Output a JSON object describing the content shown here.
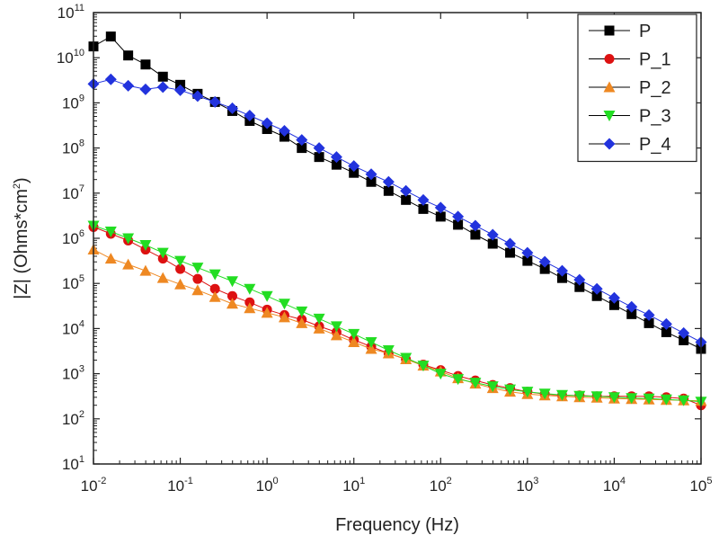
{
  "chart_data": {
    "type": "line",
    "title": "",
    "xlabel": "Frequency (Hz)",
    "ylabel_parts": {
      "main": "|Z| (Ohms*cm",
      "sup": "2",
      "close": ")"
    },
    "x_scale": "log",
    "y_scale": "log",
    "xlim_log10": [
      -2,
      5
    ],
    "ylim_log10": [
      1,
      11
    ],
    "x_ticks": [
      {
        "base": "10",
        "exp": "-2"
      },
      {
        "base": "10",
        "exp": "-1"
      },
      {
        "base": "10",
        "exp": "0"
      },
      {
        "base": "10",
        "exp": "1"
      },
      {
        "base": "10",
        "exp": "2"
      },
      {
        "base": "10",
        "exp": "3"
      },
      {
        "base": "10",
        "exp": "4"
      },
      {
        "base": "10",
        "exp": "5"
      }
    ],
    "y_ticks": [
      {
        "base": "10",
        "exp": "1"
      },
      {
        "base": "10",
        "exp": "2"
      },
      {
        "base": "10",
        "exp": "3"
      },
      {
        "base": "10",
        "exp": "4"
      },
      {
        "base": "10",
        "exp": "5"
      },
      {
        "base": "10",
        "exp": "6"
      },
      {
        "base": "10",
        "exp": "7"
      },
      {
        "base": "10",
        "exp": "8"
      },
      {
        "base": "10",
        "exp": "9"
      },
      {
        "base": "10",
        "exp": "10"
      },
      {
        "base": "10",
        "exp": "11"
      }
    ],
    "legend_position": "top-right",
    "series": [
      {
        "name": "P",
        "color": "#000000",
        "marker": "square",
        "points_log10": [
          [
            -2,
            10.25
          ],
          [
            -1.8,
            10.47
          ],
          [
            -1.6,
            10.05
          ],
          [
            -1.4,
            9.85
          ],
          [
            -1.2,
            9.58
          ],
          [
            -1,
            9.4
          ],
          [
            -0.8,
            9.2
          ],
          [
            -0.6,
            9.02
          ],
          [
            -0.4,
            8.82
          ],
          [
            -0.2,
            8.6
          ],
          [
            0,
            8.42
          ],
          [
            0.2,
            8.25
          ],
          [
            0.4,
            8.0
          ],
          [
            0.6,
            7.8
          ],
          [
            0.8,
            7.63
          ],
          [
            1,
            7.45
          ],
          [
            1.2,
            7.25
          ],
          [
            1.4,
            7.05
          ],
          [
            1.6,
            6.85
          ],
          [
            1.8,
            6.65
          ],
          [
            2,
            6.48
          ],
          [
            2.2,
            6.3
          ],
          [
            2.4,
            6.08
          ],
          [
            2.6,
            5.88
          ],
          [
            2.8,
            5.68
          ],
          [
            3,
            5.5
          ],
          [
            3.2,
            5.32
          ],
          [
            3.4,
            5.12
          ],
          [
            3.6,
            4.92
          ],
          [
            3.8,
            4.72
          ],
          [
            4,
            4.52
          ],
          [
            4.2,
            4.32
          ],
          [
            4.4,
            4.12
          ],
          [
            4.6,
            3.92
          ],
          [
            4.8,
            3.74
          ],
          [
            5,
            3.55
          ]
        ]
      },
      {
        "name": "P_1",
        "color": "#dd1111",
        "marker": "circle",
        "points_log10": [
          [
            -2,
            6.25
          ],
          [
            -1.8,
            6.1
          ],
          [
            -1.6,
            5.95
          ],
          [
            -1.4,
            5.75
          ],
          [
            -1.2,
            5.55
          ],
          [
            -1,
            5.32
          ],
          [
            -0.8,
            5.1
          ],
          [
            -0.6,
            4.88
          ],
          [
            -0.4,
            4.72
          ],
          [
            -0.2,
            4.58
          ],
          [
            0,
            4.42
          ],
          [
            0.2,
            4.3
          ],
          [
            0.4,
            4.2
          ],
          [
            0.6,
            4.05
          ],
          [
            0.8,
            3.92
          ],
          [
            1,
            3.75
          ],
          [
            1.2,
            3.6
          ],
          [
            1.4,
            3.45
          ],
          [
            1.6,
            3.32
          ],
          [
            1.8,
            3.2
          ],
          [
            2,
            3.08
          ],
          [
            2.2,
            2.95
          ],
          [
            2.4,
            2.85
          ],
          [
            2.6,
            2.75
          ],
          [
            2.8,
            2.68
          ],
          [
            3,
            2.6
          ],
          [
            3.2,
            2.55
          ],
          [
            3.4,
            2.52
          ],
          [
            3.6,
            2.52
          ],
          [
            3.8,
            2.5
          ],
          [
            4,
            2.5
          ],
          [
            4.2,
            2.5
          ],
          [
            4.4,
            2.5
          ],
          [
            4.6,
            2.48
          ],
          [
            4.8,
            2.45
          ],
          [
            5,
            2.3
          ]
        ]
      },
      {
        "name": "P_2",
        "color": "#ee8822",
        "marker": "triangle-up",
        "points_log10": [
          [
            -2,
            5.75
          ],
          [
            -1.8,
            5.55
          ],
          [
            -1.6,
            5.42
          ],
          [
            -1.4,
            5.28
          ],
          [
            -1.2,
            5.12
          ],
          [
            -1,
            4.98
          ],
          [
            -0.8,
            4.85
          ],
          [
            -0.6,
            4.7
          ],
          [
            -0.4,
            4.55
          ],
          [
            -0.2,
            4.45
          ],
          [
            0,
            4.35
          ],
          [
            0.2,
            4.25
          ],
          [
            0.4,
            4.12
          ],
          [
            0.6,
            4.0
          ],
          [
            0.8,
            3.85
          ],
          [
            1,
            3.7
          ],
          [
            1.2,
            3.55
          ],
          [
            1.4,
            3.45
          ],
          [
            1.6,
            3.32
          ],
          [
            1.8,
            3.18
          ],
          [
            2,
            3.05
          ],
          [
            2.2,
            2.9
          ],
          [
            2.4,
            2.78
          ],
          [
            2.6,
            2.68
          ],
          [
            2.8,
            2.6
          ],
          [
            3,
            2.55
          ],
          [
            3.2,
            2.52
          ],
          [
            3.4,
            2.5
          ],
          [
            3.6,
            2.48
          ],
          [
            3.8,
            2.47
          ],
          [
            4,
            2.45
          ],
          [
            4.2,
            2.44
          ],
          [
            4.4,
            2.43
          ],
          [
            4.6,
            2.42
          ],
          [
            4.8,
            2.41
          ],
          [
            5,
            2.4
          ]
        ]
      },
      {
        "name": "P_3",
        "color": "#22dd22",
        "marker": "triangle-down",
        "points_log10": [
          [
            -2,
            6.28
          ],
          [
            -1.8,
            6.15
          ],
          [
            -1.6,
            6.0
          ],
          [
            -1.4,
            5.85
          ],
          [
            -1.2,
            5.68
          ],
          [
            -1,
            5.5
          ],
          [
            -0.8,
            5.35
          ],
          [
            -0.6,
            5.2
          ],
          [
            -0.4,
            5.05
          ],
          [
            -0.2,
            4.88
          ],
          [
            0,
            4.72
          ],
          [
            0.2,
            4.55
          ],
          [
            0.4,
            4.38
          ],
          [
            0.6,
            4.22
          ],
          [
            0.8,
            4.05
          ],
          [
            1,
            3.88
          ],
          [
            1.2,
            3.7
          ],
          [
            1.4,
            3.52
          ],
          [
            1.6,
            3.35
          ],
          [
            1.8,
            3.18
          ],
          [
            2,
            3.0
          ],
          [
            2.2,
            2.88
          ],
          [
            2.4,
            2.8
          ],
          [
            2.6,
            2.72
          ],
          [
            2.8,
            2.65
          ],
          [
            3,
            2.6
          ],
          [
            3.2,
            2.56
          ],
          [
            3.4,
            2.53
          ],
          [
            3.6,
            2.51
          ],
          [
            3.8,
            2.5
          ],
          [
            4,
            2.48
          ],
          [
            4.2,
            2.46
          ],
          [
            4.4,
            2.45
          ],
          [
            4.6,
            2.43
          ],
          [
            4.8,
            2.41
          ],
          [
            5,
            2.38
          ]
        ]
      },
      {
        "name": "P_4",
        "color": "#2233dd",
        "marker": "diamond",
        "points_log10": [
          [
            -2,
            9.42
          ],
          [
            -1.8,
            9.52
          ],
          [
            -1.6,
            9.38
          ],
          [
            -1.4,
            9.3
          ],
          [
            -1.2,
            9.35
          ],
          [
            -1,
            9.28
          ],
          [
            -0.8,
            9.15
          ],
          [
            -0.6,
            9.02
          ],
          [
            -0.4,
            8.88
          ],
          [
            -0.2,
            8.72
          ],
          [
            0,
            8.55
          ],
          [
            0.2,
            8.38
          ],
          [
            0.4,
            8.18
          ],
          [
            0.6,
            8.0
          ],
          [
            0.8,
            7.8
          ],
          [
            1,
            7.6
          ],
          [
            1.2,
            7.42
          ],
          [
            1.4,
            7.25
          ],
          [
            1.6,
            7.05
          ],
          [
            1.8,
            6.85
          ],
          [
            2,
            6.68
          ],
          [
            2.2,
            6.48
          ],
          [
            2.4,
            6.28
          ],
          [
            2.6,
            6.08
          ],
          [
            2.8,
            5.88
          ],
          [
            3,
            5.68
          ],
          [
            3.2,
            5.48
          ],
          [
            3.4,
            5.28
          ],
          [
            3.6,
            5.08
          ],
          [
            3.8,
            4.88
          ],
          [
            4,
            4.68
          ],
          [
            4.2,
            4.48
          ],
          [
            4.4,
            4.3
          ],
          [
            4.6,
            4.1
          ],
          [
            4.8,
            3.9
          ],
          [
            5,
            3.7
          ]
        ]
      }
    ]
  }
}
